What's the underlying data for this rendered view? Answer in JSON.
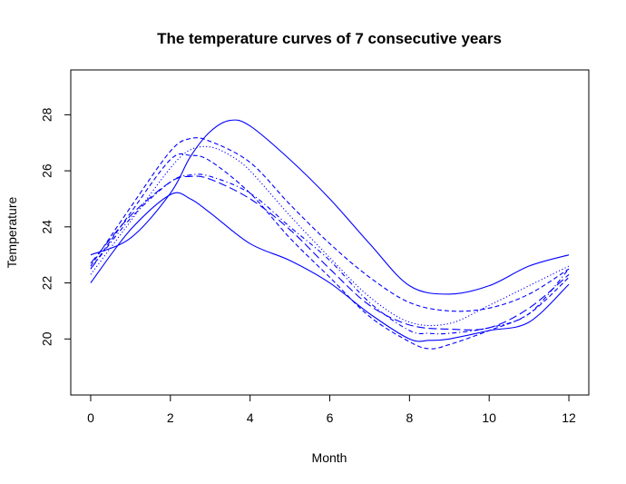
{
  "chart_data": {
    "type": "line",
    "title": "The temperature curves of 7 consecutive years",
    "xlabel": "Month",
    "ylabel": "Temperature",
    "xlim": [
      -0.5,
      12.5
    ],
    "ylim": [
      18.0,
      29.6
    ],
    "xticks": [
      0,
      2,
      4,
      6,
      8,
      10,
      12
    ],
    "yticks": [
      20,
      22,
      24,
      26,
      28
    ],
    "grid": false,
    "legend": "none",
    "series_color": "#0000ff",
    "series": [
      {
        "dash": "solid",
        "x": [
          0,
          1,
          2,
          2.5,
          3,
          3.5,
          4,
          5,
          6,
          7,
          8,
          9,
          10,
          11,
          12
        ],
        "y": [
          23.0,
          23.6,
          25.2,
          26.5,
          27.4,
          27.8,
          27.6,
          26.4,
          25.0,
          23.4,
          21.9,
          21.6,
          21.9,
          22.6,
          23.0
        ]
      },
      {
        "dash": "solid",
        "x": [
          0,
          1,
          2,
          2.5,
          3,
          4,
          5,
          6,
          7,
          8,
          8.5,
          9,
          10,
          11,
          12
        ],
        "y": [
          22.0,
          23.9,
          25.15,
          25.0,
          24.5,
          23.4,
          22.8,
          22.0,
          20.9,
          20.0,
          19.95,
          20.0,
          20.3,
          20.6,
          21.95
        ]
      },
      {
        "dash": "dashed",
        "x": [
          0,
          1,
          2,
          2.5,
          3,
          4,
          5,
          6,
          7,
          8,
          8.5,
          9,
          10,
          11,
          12
        ],
        "y": [
          22.5,
          24.5,
          26.4,
          26.55,
          26.35,
          25.2,
          23.6,
          22.2,
          20.8,
          19.9,
          19.65,
          19.8,
          20.3,
          20.9,
          22.2
        ]
      },
      {
        "dash": "dashed",
        "x": [
          0,
          1,
          2,
          2.5,
          3,
          4,
          5,
          6,
          7,
          8,
          9,
          10,
          11,
          12
        ],
        "y": [
          22.6,
          24.7,
          26.7,
          27.15,
          27.05,
          26.3,
          24.8,
          23.4,
          22.2,
          21.3,
          21.0,
          21.1,
          21.6,
          22.5
        ]
      },
      {
        "dash": "dotted",
        "x": [
          0,
          1,
          2,
          2.5,
          3,
          3.5,
          4,
          5,
          6,
          7,
          8,
          9,
          10,
          11,
          12
        ],
        "y": [
          22.3,
          24.2,
          26.1,
          26.75,
          26.85,
          26.55,
          26.0,
          24.4,
          22.9,
          21.5,
          20.6,
          20.55,
          21.2,
          21.9,
          22.6
        ]
      },
      {
        "dash": "dotdash",
        "x": [
          0,
          1,
          2,
          2.5,
          3,
          4,
          5,
          6,
          7,
          8,
          8.5,
          9,
          10,
          11,
          12
        ],
        "y": [
          22.5,
          24.3,
          25.6,
          25.85,
          25.8,
          25.2,
          24.0,
          22.8,
          21.3,
          20.3,
          20.2,
          20.2,
          20.4,
          20.9,
          22.5
        ]
      },
      {
        "dash": "longdash",
        "x": [
          0,
          1,
          2,
          2.5,
          3,
          4,
          5,
          6,
          7,
          8,
          9,
          10,
          11,
          12
        ],
        "y": [
          22.7,
          24.4,
          25.6,
          25.8,
          25.7,
          25.0,
          23.9,
          22.5,
          21.2,
          20.5,
          20.35,
          20.4,
          21.1,
          22.3
        ]
      }
    ]
  }
}
